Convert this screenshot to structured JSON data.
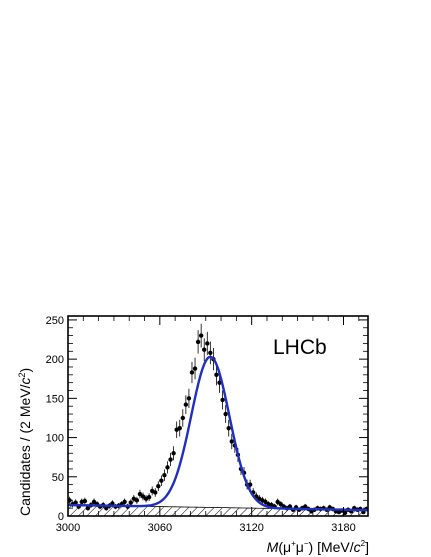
{
  "chart_data": {
    "type": "scatter",
    "annotation": "LHCb",
    "xlabel": {
      "prefix": "M",
      "paren_open": "(",
      "mu": "μ",
      "plus": "+",
      "minus": "−",
      "paren_close": ")",
      "unit_open": " [MeV/",
      "c": "c",
      "sq": "2",
      "unit_close": "]"
    },
    "ylabel": {
      "prefix": "Candidates / (2 MeV/",
      "c": "c",
      "sq": "2",
      "suffix": ")"
    },
    "xlim": [
      3000,
      3196
    ],
    "ylim": [
      0,
      255
    ],
    "x_ticks": [
      3000,
      3060,
      3120,
      3180
    ],
    "y_ticks": [
      0,
      50,
      100,
      150,
      200,
      250
    ],
    "grid": false,
    "colors": {
      "fit": "#1f2fbf",
      "data": "#000000",
      "background_hatch": "#000000"
    },
    "series": [
      {
        "kind": "data_points_with_errors",
        "x": [
          3001,
          3003,
          3005,
          3007,
          3009,
          3011,
          3013,
          3015,
          3017,
          3019,
          3021,
          3023,
          3025,
          3027,
          3029,
          3031,
          3033,
          3035,
          3037,
          3039,
          3041,
          3043,
          3045,
          3047,
          3049,
          3051,
          3053,
          3055,
          3057,
          3059,
          3061,
          3063,
          3065,
          3067,
          3069,
          3071,
          3073,
          3075,
          3077,
          3079,
          3081,
          3083,
          3085,
          3087,
          3089,
          3091,
          3093,
          3095,
          3097,
          3099,
          3101,
          3103,
          3105,
          3107,
          3109,
          3111,
          3113,
          3115,
          3117,
          3119,
          3121,
          3123,
          3125,
          3127,
          3129,
          3131,
          3133,
          3135,
          3137,
          3139,
          3141,
          3143,
          3145,
          3147,
          3149,
          3151,
          3153,
          3155,
          3157,
          3159,
          3161,
          3163,
          3165,
          3167,
          3169,
          3171,
          3173,
          3175,
          3177,
          3179,
          3181,
          3183,
          3185,
          3187,
          3189,
          3191,
          3193,
          3195
        ],
        "y": [
          20,
          15,
          17,
          12,
          18,
          19,
          10,
          14,
          18,
          15,
          12,
          14,
          10,
          13,
          16,
          12,
          13,
          15,
          18,
          12,
          17,
          22,
          20,
          28,
          25,
          22,
          24,
          32,
          30,
          38,
          45,
          52,
          62,
          72,
          80,
          110,
          112,
          125,
          142,
          150,
          183,
          188,
          222,
          230,
          212,
          220,
          208,
          200,
          180,
          170,
          148,
          130,
          112,
          95,
          90,
          78,
          60,
          55,
          40,
          40,
          30,
          25,
          22,
          20,
          18,
          15,
          14,
          12,
          18,
          15,
          12,
          10,
          12,
          8,
          11,
          8,
          10,
          12,
          9,
          6,
          8,
          10,
          9,
          10,
          8,
          11,
          9,
          6,
          5,
          7,
          4,
          8,
          6,
          10,
          8,
          9,
          5,
          9
        ]
      },
      {
        "kind": "fit_total",
        "mean": 3093,
        "sigma": 12.5,
        "amplitude": 192,
        "background_start": 14,
        "background_slope": -0.033
      },
      {
        "kind": "background_hatched",
        "background_start": 14,
        "background_slope": -0.033
      }
    ]
  }
}
